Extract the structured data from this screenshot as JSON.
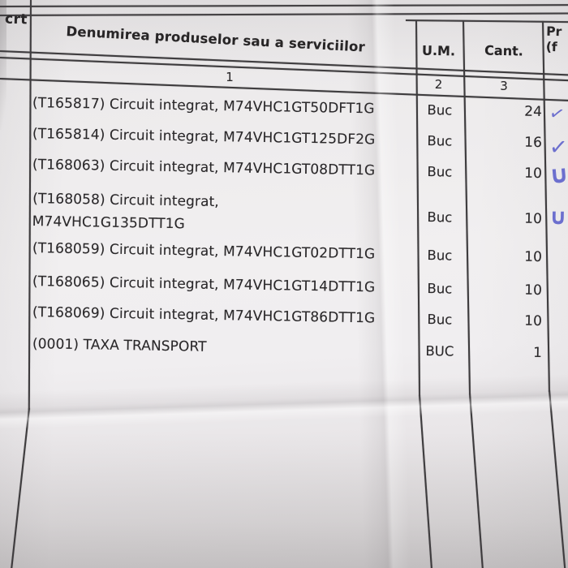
{
  "paper": {
    "ink_color": "#5f62cc",
    "line_color": "#3d3b3d"
  },
  "table": {
    "header": {
      "col_crt": "crt",
      "col_name": "Denumirea produselor sau a serviciilor",
      "col_um": "U.M.",
      "col_cant": "Cant.",
      "col_price_line1": "Pr",
      "col_price_line2": "(f",
      "num_name": "1",
      "num_um": "2",
      "num_cant": "3"
    },
    "rows": [
      {
        "name": "(T165817) Circuit integrat, M74VHC1GT50DFT1G",
        "um": "Buc",
        "qty": "24",
        "check": "✓"
      },
      {
        "name": "(T165814) Circuit integrat, M74VHC1GT125DF2G",
        "um": "Buc",
        "qty": "16",
        "check": "✓"
      },
      {
        "name": "(T168063) Circuit integrat, M74VHC1GT08DTT1G",
        "um": "Buc",
        "qty": "10",
        "check": "∪"
      },
      {
        "name": "(T168058) Circuit integrat,",
        "name2": "M74VHC1G135DTT1G",
        "um": "Buc",
        "qty": "10",
        "check": "∪"
      },
      {
        "name": "(T168059) Circuit integrat, M74VHC1GT02DTT1G",
        "um": "Buc",
        "qty": "10"
      },
      {
        "name": "(T168065) Circuit integrat, M74VHC1GT14DTT1G",
        "um": "Buc",
        "qty": "10"
      },
      {
        "name": "(T168069) Circuit integrat, M74VHC1GT86DTT1G",
        "um": "Buc",
        "qty": "10"
      },
      {
        "name": "(0001) TAXA TRANSPORT",
        "um": "BUC",
        "qty": "1"
      }
    ]
  }
}
